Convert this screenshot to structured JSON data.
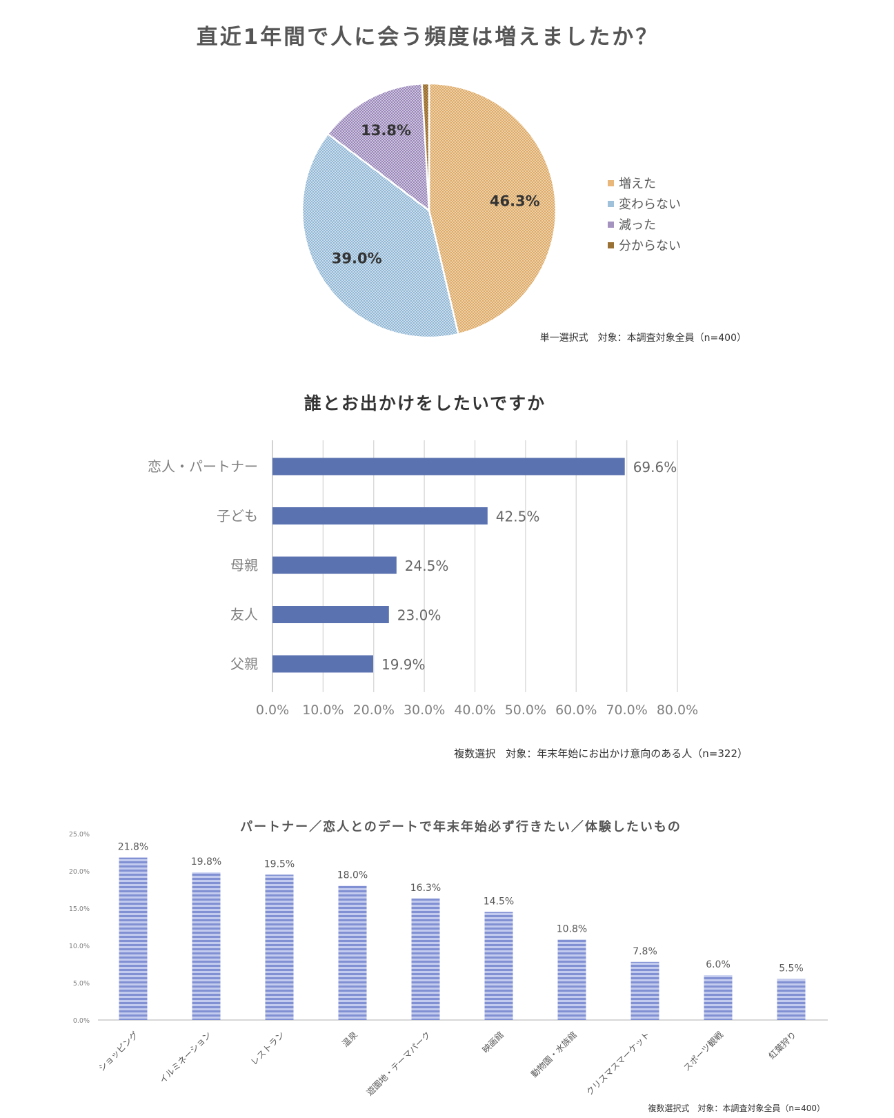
{
  "chart_data": [
    {
      "type": "pie",
      "title": "直近1年間で人に会う頻度は増えましたか？",
      "categories": [
        "増えた",
        "変わらない",
        "減った",
        "分からない"
      ],
      "values": [
        46.3,
        39.0,
        13.8,
        0.9
      ],
      "data_labels": [
        "46.3%",
        "39.0%",
        "13.8%",
        ""
      ],
      "colors": [
        "#e9b779",
        "#9fc1d9",
        "#a492bf",
        "#9a7135"
      ],
      "legend_position": "right",
      "note": "単一選択式　対象：本調査対象全員（n=400）"
    },
    {
      "type": "bar",
      "orientation": "horizontal",
      "title": "誰とお出かけをしたいですか",
      "categories": [
        "恋人・パートナー",
        "子ども",
        "母親",
        "友人",
        "父親"
      ],
      "values": [
        69.6,
        42.5,
        24.5,
        23.0,
        19.9
      ],
      "data_labels": [
        "69.6%",
        "42.5%",
        "24.5%",
        "23.0%",
        "19.9%"
      ],
      "xlim": [
        0,
        80
      ],
      "ticks": [
        "0.0%",
        "10.0%",
        "20.0%",
        "30.0%",
        "40.0%",
        "50.0%",
        "60.0%",
        "70.0%",
        "80.0%"
      ],
      "grid": true,
      "color": "#5b72b1",
      "note": "複数選択　対象：年末年始にお出かけ意向のある人（n=322）"
    },
    {
      "type": "bar",
      "orientation": "vertical",
      "title": "パートナー／恋人とのデートで年末年始必ず行きたい／体験したいもの",
      "categories": [
        "ショッピング",
        "イルミネーション",
        "レストラン",
        "温泉",
        "遊園地・テーマパーク",
        "映画館",
        "動物園・水族館",
        "クリスマスマーケット",
        "スポーツ観戦",
        "紅葉狩り"
      ],
      "values": [
        21.8,
        19.8,
        19.5,
        18.0,
        16.3,
        14.5,
        10.8,
        7.8,
        6.0,
        5.5
      ],
      "data_labels": [
        "21.8%",
        "19.8%",
        "19.5%",
        "18.0%",
        "16.3%",
        "14.5%",
        "10.8%",
        "7.8%",
        "6.0%",
        "5.5%"
      ],
      "ylim": [
        0,
        25
      ],
      "ticks": [
        "0.0%",
        "5.0%",
        "10.0%",
        "15.0%",
        "20.0%",
        "25.0%"
      ],
      "grid": false,
      "color": "#8a9ad6",
      "note": "複数選択式　対象：本調査対象全員（n=400）"
    }
  ]
}
